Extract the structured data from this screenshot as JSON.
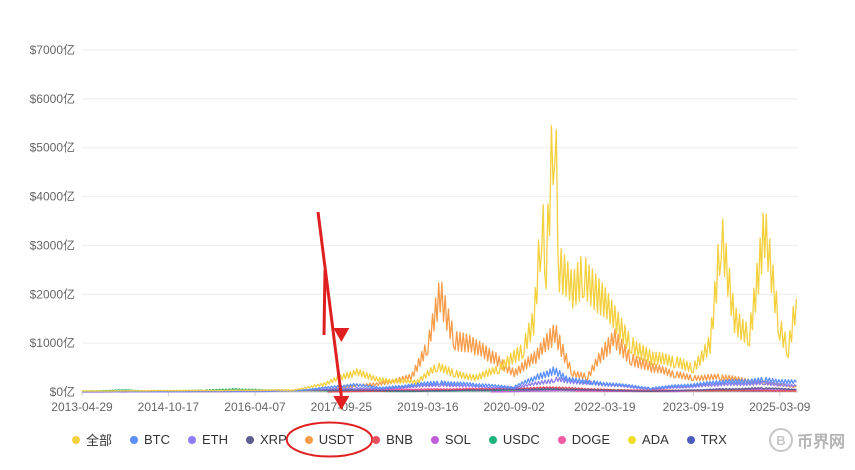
{
  "chart_data": {
    "type": "line",
    "title": "",
    "xlabel": "",
    "ylabel": "",
    "y_ticks": [
      "$0亿",
      "$1000亿",
      "$2000亿",
      "$3000亿",
      "$4000亿",
      "$5000亿",
      "$6000亿",
      "$7000亿"
    ],
    "ylim": [
      0,
      7000
    ],
    "x_ticks": [
      "2013-04-29",
      "2014-10-17",
      "2016-04-07",
      "2017-09-25",
      "2019-03-16",
      "2020-09-02",
      "2022-03-19",
      "2023-09-19",
      "2025-03-09"
    ],
    "xlim": [
      "2013-04-29",
      "2025-06-30"
    ],
    "grid": "horizontal",
    "legend_position": "bottom",
    "series": [
      {
        "name": "全部",
        "color": "#f4d03f",
        "points": [
          [
            "2013-04-29",
            20
          ],
          [
            "2016-12-01",
            40
          ],
          [
            "2017-06-01",
            150
          ],
          [
            "2017-12-20",
            400
          ],
          [
            "2018-06-01",
            250
          ],
          [
            "2019-01-01",
            200
          ],
          [
            "2019-05-15",
            500
          ],
          [
            "2019-09-01",
            380
          ],
          [
            "2020-01-01",
            300
          ],
          [
            "2020-06-01",
            450
          ],
          [
            "2020-11-01",
            900
          ],
          [
            "2021-01-01",
            1500
          ],
          [
            "2021-02-20",
            3500
          ],
          [
            "2021-03-20",
            2500
          ],
          [
            "2021-05-12",
            6000
          ],
          [
            "2021-06-10",
            2500
          ],
          [
            "2021-09-01",
            2000
          ],
          [
            "2021-11-10",
            2500
          ],
          [
            "2022-02-01",
            2000
          ],
          [
            "2022-05-10",
            1500
          ],
          [
            "2022-09-01",
            1000
          ],
          [
            "2023-01-01",
            700
          ],
          [
            "2023-06-01",
            600
          ],
          [
            "2023-09-19",
            500
          ],
          [
            "2024-01-01",
            1000
          ],
          [
            "2024-03-10",
            3100
          ],
          [
            "2024-06-01",
            1500
          ],
          [
            "2024-09-01",
            1200
          ],
          [
            "2024-12-05",
            3200
          ],
          [
            "2025-03-09",
            1300
          ],
          [
            "2025-05-01",
            900
          ],
          [
            "2025-06-20",
            1900
          ]
        ]
      },
      {
        "name": "BTC",
        "color": "#5b8ff9",
        "points": [
          [
            "2013-04-29",
            15
          ],
          [
            "2017-01-01",
            30
          ],
          [
            "2017-12-20",
            150
          ],
          [
            "2018-06-01",
            80
          ],
          [
            "2019-06-01",
            200
          ],
          [
            "2020-01-01",
            150
          ],
          [
            "2020-09-02",
            100
          ],
          [
            "2021-01-15",
            300
          ],
          [
            "2021-05-12",
            450
          ],
          [
            "2021-08-01",
            250
          ],
          [
            "2022-01-01",
            200
          ],
          [
            "2023-01-01",
            80
          ],
          [
            "2024-03-10",
            200
          ],
          [
            "2024-12-05",
            250
          ],
          [
            "2025-06-20",
            200
          ]
        ]
      },
      {
        "name": "ETH",
        "color": "#8c7cf0",
        "points": [
          [
            "2013-04-29",
            0
          ],
          [
            "2016-06-01",
            10
          ],
          [
            "2017-12-20",
            80
          ],
          [
            "2018-06-01",
            60
          ],
          [
            "2019-06-01",
            150
          ],
          [
            "2020-09-02",
            80
          ],
          [
            "2021-05-12",
            250
          ],
          [
            "2022-01-01",
            180
          ],
          [
            "2023-01-01",
            60
          ],
          [
            "2024-03-10",
            150
          ],
          [
            "2024-12-05",
            180
          ],
          [
            "2025-06-20",
            120
          ]
        ]
      },
      {
        "name": "XRP",
        "color": "#5d5d8f",
        "points": [
          [
            "2013-04-29",
            5
          ],
          [
            "2017-12-20",
            40
          ],
          [
            "2019-01-01",
            20
          ],
          [
            "2021-04-10",
            60
          ],
          [
            "2023-01-01",
            15
          ],
          [
            "2024-12-05",
            80
          ],
          [
            "2025-06-20",
            50
          ]
        ]
      },
      {
        "name": "USDT",
        "color": "#f89c4a",
        "points": [
          [
            "2013-04-29",
            0
          ],
          [
            "2015-06-01",
            5
          ],
          [
            "2017-06-01",
            30
          ],
          [
            "2017-12-20",
            120
          ],
          [
            "2018-06-01",
            180
          ],
          [
            "2018-12-01",
            300
          ],
          [
            "2019-03-16",
            900
          ],
          [
            "2019-06-01",
            2000
          ],
          [
            "2019-09-01",
            1100
          ],
          [
            "2020-01-01",
            900
          ],
          [
            "2020-05-01",
            700
          ],
          [
            "2020-09-02",
            400
          ],
          [
            "2021-01-15",
            700
          ],
          [
            "2021-05-12",
            1200
          ],
          [
            "2021-09-01",
            400
          ],
          [
            "2021-12-01",
            300
          ],
          [
            "2022-05-10",
            1100
          ],
          [
            "2022-09-01",
            700
          ],
          [
            "2023-01-01",
            500
          ],
          [
            "2023-06-01",
            350
          ],
          [
            "2023-09-19",
            300
          ],
          [
            "2024-03-10",
            300
          ],
          [
            "2025-03-09",
            150
          ],
          [
            "2025-06-20",
            100
          ]
        ]
      },
      {
        "name": "BNB",
        "color": "#e84e5c",
        "points": [
          [
            "2017-07-01",
            0
          ],
          [
            "2019-06-01",
            40
          ],
          [
            "2021-05-12",
            90
          ],
          [
            "2022-06-01",
            40
          ],
          [
            "2024-06-01",
            30
          ],
          [
            "2025-06-20",
            20
          ]
        ]
      },
      {
        "name": "SOL",
        "color": "#c15ddc",
        "points": [
          [
            "2020-04-10",
            0
          ],
          [
            "2021-11-01",
            40
          ],
          [
            "2022-06-01",
            20
          ],
          [
            "2023-06-01",
            10
          ],
          [
            "2024-03-10",
            60
          ],
          [
            "2025-06-20",
            40
          ]
        ]
      },
      {
        "name": "USDC",
        "color": "#1db37c",
        "points": [
          [
            "2013-04-29",
            15
          ],
          [
            "2014-02-01",
            40
          ],
          [
            "2014-06-01",
            20
          ],
          [
            "2015-06-01",
            35
          ],
          [
            "2015-12-01",
            60
          ],
          [
            "2016-06-01",
            40
          ],
          [
            "2017-01-01",
            30
          ],
          [
            "2018-10-01",
            10
          ],
          [
            "2021-06-01",
            50
          ],
          [
            "2023-01-01",
            30
          ],
          [
            "2025-06-20",
            40
          ]
        ]
      },
      {
        "name": "DOGE",
        "color": "#f25ca2",
        "points": [
          [
            "2013-12-15",
            0
          ],
          [
            "2021-05-08",
            80
          ],
          [
            "2021-10-01",
            20
          ],
          [
            "2023-01-01",
            10
          ],
          [
            "2024-12-05",
            40
          ],
          [
            "2025-06-20",
            20
          ]
        ]
      },
      {
        "name": "ADA",
        "color": "#f3de2c",
        "points": [
          [
            "2017-10-01",
            0
          ],
          [
            "2018-01-05",
            30
          ],
          [
            "2021-09-01",
            40
          ],
          [
            "2023-01-01",
            10
          ],
          [
            "2024-12-05",
            30
          ],
          [
            "2025-06-20",
            15
          ]
        ]
      },
      {
        "name": "TRX",
        "color": "#4c5dbf",
        "points": [
          [
            "2017-09-13",
            0
          ],
          [
            "2018-01-05",
            20
          ],
          [
            "2021-04-01",
            30
          ],
          [
            "2023-01-01",
            15
          ],
          [
            "2025-06-20",
            20
          ]
        ]
      }
    ],
    "annotations": [
      {
        "type": "arrow",
        "color": "#e02020",
        "target_date": "2017-09-25",
        "points_at": "x-axis near 2017-09-25"
      },
      {
        "type": "ellipse",
        "color": "#e02020",
        "target": "legend item USDT"
      }
    ]
  },
  "watermark": {
    "logo_char": "B",
    "text": "币界网"
  }
}
